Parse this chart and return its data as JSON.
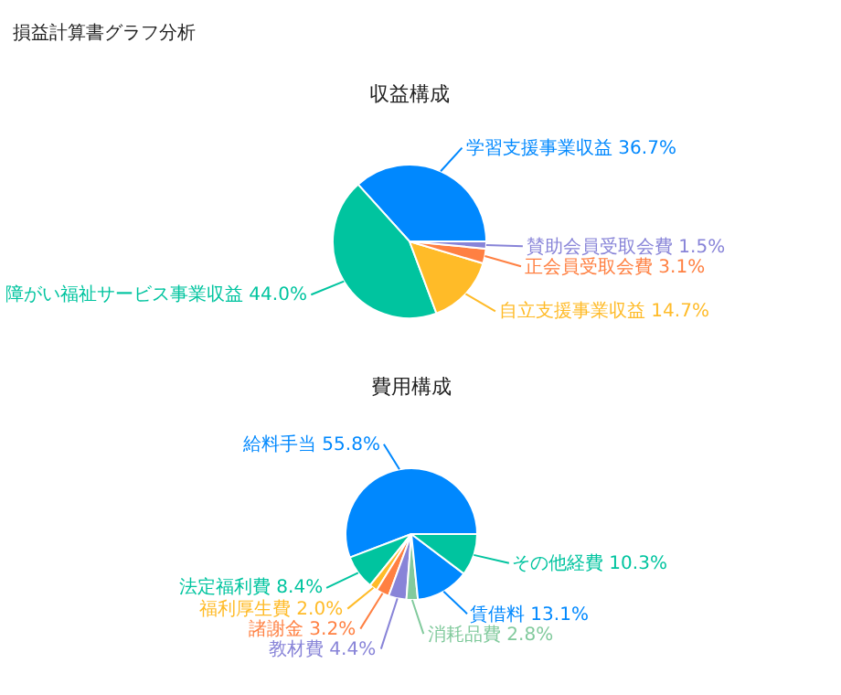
{
  "chart_data": [
    {
      "type": "pie",
      "title": "収益構成",
      "annotations": [
        "損益計算書グラフ分析"
      ],
      "categories": [
        "学習支援事業収益",
        "障がい福祉サービス事業収益",
        "自立支援事業収益",
        "正会員受取会費",
        "賛助会員受取会費"
      ],
      "values": [
        36.7,
        44.0,
        14.7,
        3.1,
        1.5
      ],
      "value_labels": [
        "36.7%",
        "44.0%",
        "14.7%",
        "3.1%",
        "1.5%"
      ],
      "colors": [
        "#0088fe",
        "#00c49f",
        "#ffbb28",
        "#ff8042",
        "#8884d8"
      ]
    },
    {
      "type": "pie",
      "title": "費用構成",
      "categories": [
        "給料手当",
        "法定福利費",
        "福利厚生費",
        "諸謝金",
        "教材費",
        "消耗品費",
        "賃借料",
        "その他経費"
      ],
      "values": [
        55.8,
        8.4,
        2.0,
        3.2,
        4.4,
        2.8,
        13.1,
        10.3
      ],
      "value_labels": [
        "55.8%",
        "8.4%",
        "2.0%",
        "3.2%",
        "4.4%",
        "2.8%",
        "13.1%",
        "10.3%"
      ],
      "colors": [
        "#0088fe",
        "#00c49f",
        "#ffbb28",
        "#ff8042",
        "#8884d8",
        "#82ca9d",
        "#0088fe",
        "#00c49f"
      ]
    }
  ]
}
